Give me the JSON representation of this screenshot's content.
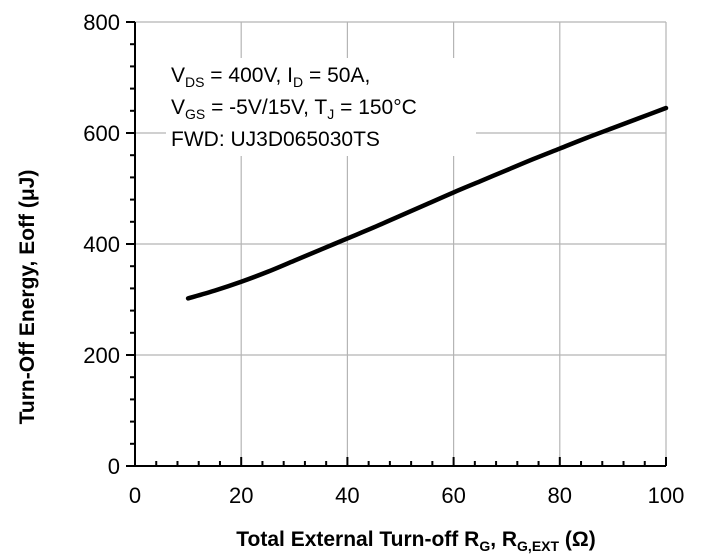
{
  "chart_data": {
    "type": "line",
    "title": "",
    "xlabel": {
      "main": "Total External Turn-off R",
      "sub1": "G",
      "sep": ", R",
      "sub2": "G,EXT",
      "unit": " (Ω)"
    },
    "ylabel": "Turn-Off Energy, Eoff (μJ)",
    "xlim": [
      0,
      100
    ],
    "ylim": [
      0,
      800
    ],
    "xticks": [
      "0",
      "20",
      "40",
      "60",
      "80",
      "100"
    ],
    "yticks": [
      "0",
      "200",
      "400",
      "600",
      "800"
    ],
    "grid": true,
    "annotation": {
      "line1": [
        {
          "t": "V"
        },
        {
          "t": "DS",
          "sub": true
        },
        {
          "t": " = 400V, I"
        },
        {
          "t": "D",
          "sub": true
        },
        {
          "t": " = 50A,"
        }
      ],
      "line2": [
        {
          "t": "V"
        },
        {
          "t": "GS",
          "sub": true
        },
        {
          "t": " = -5V/15V, T"
        },
        {
          "t": "J",
          "sub": true
        },
        {
          "t": " = 150°C"
        }
      ],
      "line3": [
        {
          "t": "FWD: UJ3D065030TS"
        }
      ]
    },
    "series": [
      {
        "x": [
          10,
          15,
          20,
          25,
          30,
          35,
          40,
          45,
          50,
          55,
          60,
          65,
          70,
          75,
          80,
          85,
          90,
          95,
          100
        ],
        "y": [
          302,
          316,
          332,
          350,
          370,
          390,
          410,
          430,
          451,
          472,
          493,
          513,
          533,
          553,
          572,
          591,
          609,
          627,
          645
        ],
        "color": "#000000"
      }
    ]
  }
}
